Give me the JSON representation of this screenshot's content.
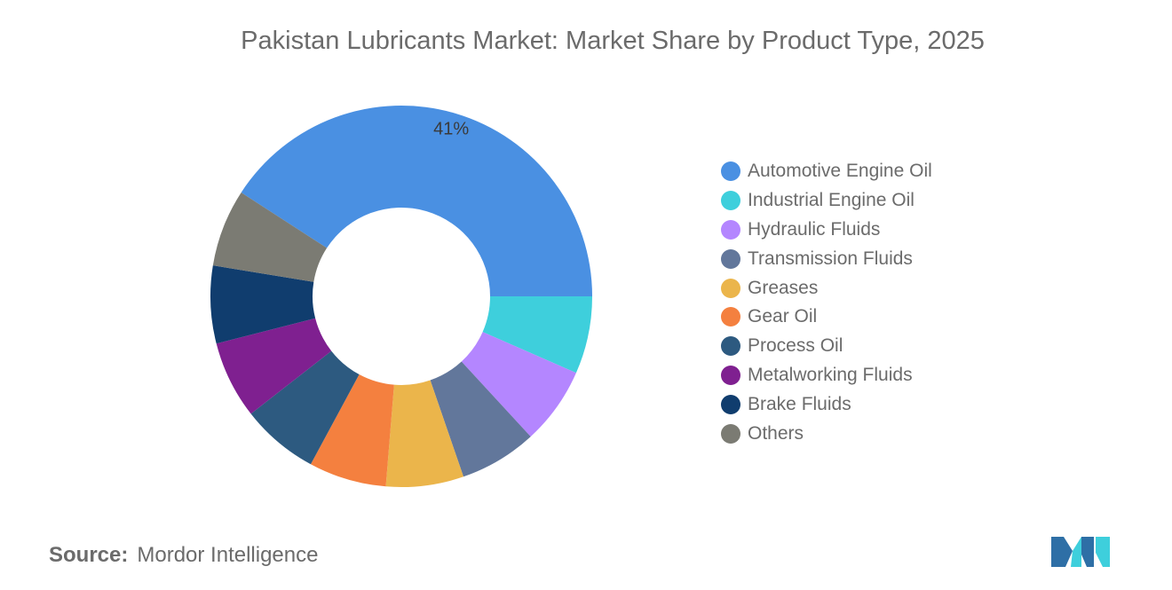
{
  "chart_data": {
    "type": "pie",
    "title": "Pakistan Lubricants Market: Market Share by Product Type, 2025",
    "categories": [
      "Automotive Engine Oil",
      "Industrial Engine Oil",
      "Hydraulic Fluids",
      "Transmission Fluids",
      "Greases",
      "Gear Oil",
      "Process Oil",
      "Metalworking Fluids",
      "Brake Fluids",
      "Others"
    ],
    "values": [
      41,
      6.6,
      6.6,
      6.6,
      6.6,
      6.6,
      6.6,
      6.6,
      6.6,
      6.6
    ],
    "data_labels": [
      "41%",
      "",
      "",
      "",
      "",
      "",
      "",
      "",
      "",
      ""
    ],
    "colors": [
      "#4a90e2",
      "#3ecfdc",
      "#b486ff",
      "#62779b",
      "#ebb54b",
      "#f4803f",
      "#2d5a80",
      "#7f2090",
      "#103d6e",
      "#7b7b73"
    ],
    "hole": "donut",
    "legend_position": "right"
  },
  "source": {
    "label": "Source:",
    "text": "Mordor Intelligence"
  }
}
